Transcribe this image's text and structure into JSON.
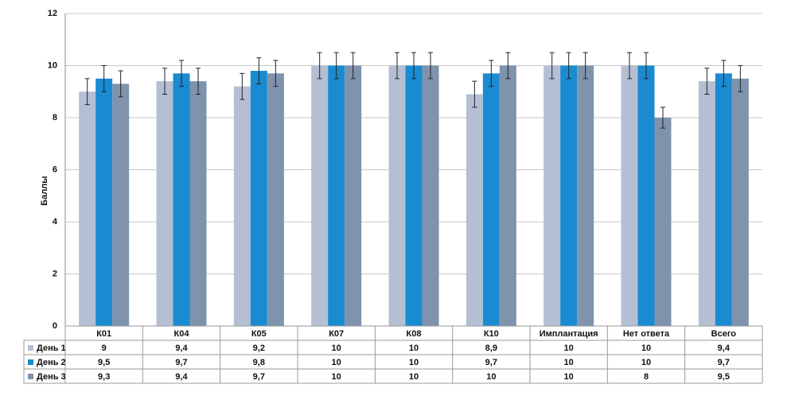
{
  "chart_data": {
    "type": "bar",
    "y_label": "Баллы",
    "categories": [
      "К01",
      "К04",
      "К05",
      "К07",
      "К08",
      "К10",
      "Имплантация",
      "Нет ответа",
      "Всего"
    ],
    "series": [
      {
        "name": "День 1",
        "color": "#b4bfd3",
        "values": [
          9,
          9.4,
          9.2,
          10,
          10,
          8.9,
          10,
          10,
          9.4
        ],
        "value_labels": [
          "9",
          "9,4",
          "9,2",
          "10",
          "10",
          "8,9",
          "10",
          "10",
          "9,4"
        ],
        "errors": [
          0.5,
          0.5,
          0.5,
          0.5,
          0.5,
          0.5,
          0.5,
          0.5,
          0.5
        ]
      },
      {
        "name": "День 2",
        "color": "#1a8bd0",
        "values": [
          9.5,
          9.7,
          9.8,
          10,
          10,
          9.7,
          10,
          10,
          9.7
        ],
        "value_labels": [
          "9,5",
          "9,7",
          "9,8",
          "10",
          "10",
          "9,7",
          "10",
          "10",
          "9,7"
        ],
        "errors": [
          0.5,
          0.5,
          0.5,
          0.5,
          0.5,
          0.5,
          0.5,
          0.5,
          0.5
        ]
      },
      {
        "name": "День 3",
        "color": "#7f93ad",
        "values": [
          9.3,
          9.4,
          9.7,
          10,
          10,
          10,
          10,
          8,
          9.5
        ],
        "value_labels": [
          "9,3",
          "9,4",
          "9,7",
          "10",
          "10",
          "10",
          "10",
          "8",
          "9,5"
        ],
        "errors": [
          0.5,
          0.5,
          0.5,
          0.5,
          0.5,
          0.5,
          0.5,
          0.4,
          0.5
        ]
      }
    ],
    "ylim": [
      0,
      12
    ],
    "yticks": [
      0,
      2,
      4,
      6,
      8,
      10,
      12
    ],
    "grid": true
  }
}
